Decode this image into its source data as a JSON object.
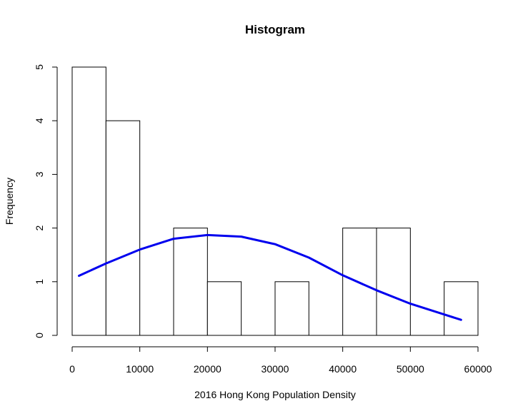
{
  "chart_data": {
    "type": "bar",
    "title": "Histogram",
    "xlabel": "2016 Hong Kong Population Density",
    "ylabel": "Frequency",
    "bins": [
      {
        "start": 0,
        "end": 5000,
        "count": 5
      },
      {
        "start": 5000,
        "end": 10000,
        "count": 4
      },
      {
        "start": 10000,
        "end": 15000,
        "count": 0
      },
      {
        "start": 15000,
        "end": 20000,
        "count": 2
      },
      {
        "start": 20000,
        "end": 25000,
        "count": 1
      },
      {
        "start": 25000,
        "end": 30000,
        "count": 0
      },
      {
        "start": 30000,
        "end": 35000,
        "count": 1
      },
      {
        "start": 35000,
        "end": 40000,
        "count": 0
      },
      {
        "start": 40000,
        "end": 45000,
        "count": 2
      },
      {
        "start": 45000,
        "end": 50000,
        "count": 2
      },
      {
        "start": 50000,
        "end": 55000,
        "count": 0
      },
      {
        "start": 55000,
        "end": 60000,
        "count": 1
      }
    ],
    "xlim": [
      0,
      60000
    ],
    "ylim": [
      0,
      5
    ],
    "xticks": [
      0,
      10000,
      20000,
      30000,
      40000,
      50000,
      60000
    ],
    "yticks": [
      0,
      1,
      2,
      3,
      4,
      5
    ],
    "curve": {
      "color": "#0000ee",
      "points": [
        [
          1000,
          1.11
        ],
        [
          5000,
          1.34
        ],
        [
          10000,
          1.6
        ],
        [
          15000,
          1.8
        ],
        [
          20000,
          1.87
        ],
        [
          25000,
          1.84
        ],
        [
          30000,
          1.7
        ],
        [
          35000,
          1.45
        ],
        [
          40000,
          1.12
        ],
        [
          45000,
          0.84
        ],
        [
          50000,
          0.59
        ],
        [
          55000,
          0.39
        ],
        [
          57500,
          0.29
        ]
      ]
    }
  }
}
